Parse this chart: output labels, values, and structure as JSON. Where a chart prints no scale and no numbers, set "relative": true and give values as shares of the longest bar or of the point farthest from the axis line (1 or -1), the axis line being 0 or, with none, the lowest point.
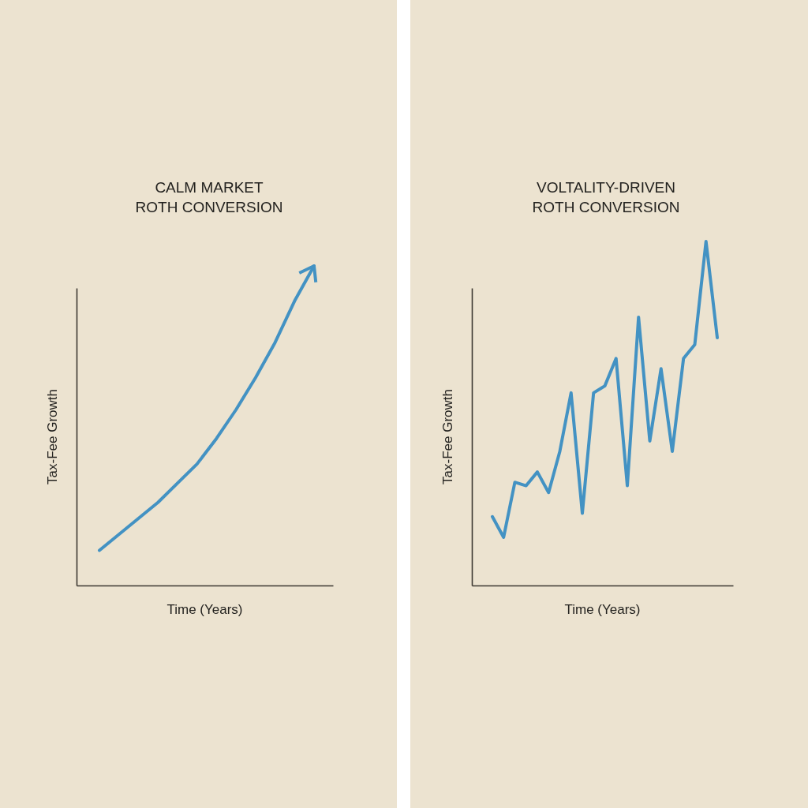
{
  "chart_data": [
    {
      "type": "line",
      "title": "CALM MARKET\nROTH CONVERSION",
      "xlabel": "Time (Years)",
      "ylabel": "Tax-Fee Growth",
      "relative": true,
      "categories": [
        null,
        null,
        null,
        null,
        null,
        null,
        null,
        null,
        null,
        null,
        null,
        null
      ],
      "series": [
        {
          "color": "#4392c3",
          "values": [
            0.11,
            0.16,
            0.21,
            0.26,
            0.32,
            0.38,
            0.46,
            0.55,
            0.65,
            0.76,
            0.89,
            1.0
          ]
        }
      ]
    },
    {
      "type": "line",
      "title": "VOLTALITY-DRIVEN\nROTH CONVERSION",
      "xlabel": "Time (Years)",
      "ylabel": "Tax-Fee Growth",
      "relative": true,
      "categories": [
        null,
        null,
        null,
        null,
        null,
        null,
        null,
        null,
        null,
        null,
        null,
        null,
        null,
        null,
        null,
        null,
        null,
        null,
        null,
        null,
        null
      ],
      "series": [
        {
          "color": "#4392c3",
          "values": [
            0.2,
            0.14,
            0.3,
            0.29,
            0.33,
            0.27,
            0.39,
            0.56,
            0.21,
            0.56,
            0.58,
            0.66,
            0.29,
            0.78,
            0.42,
            0.63,
            0.39,
            0.66,
            0.7,
            1.0,
            0.72
          ]
        }
      ]
    }
  ]
}
